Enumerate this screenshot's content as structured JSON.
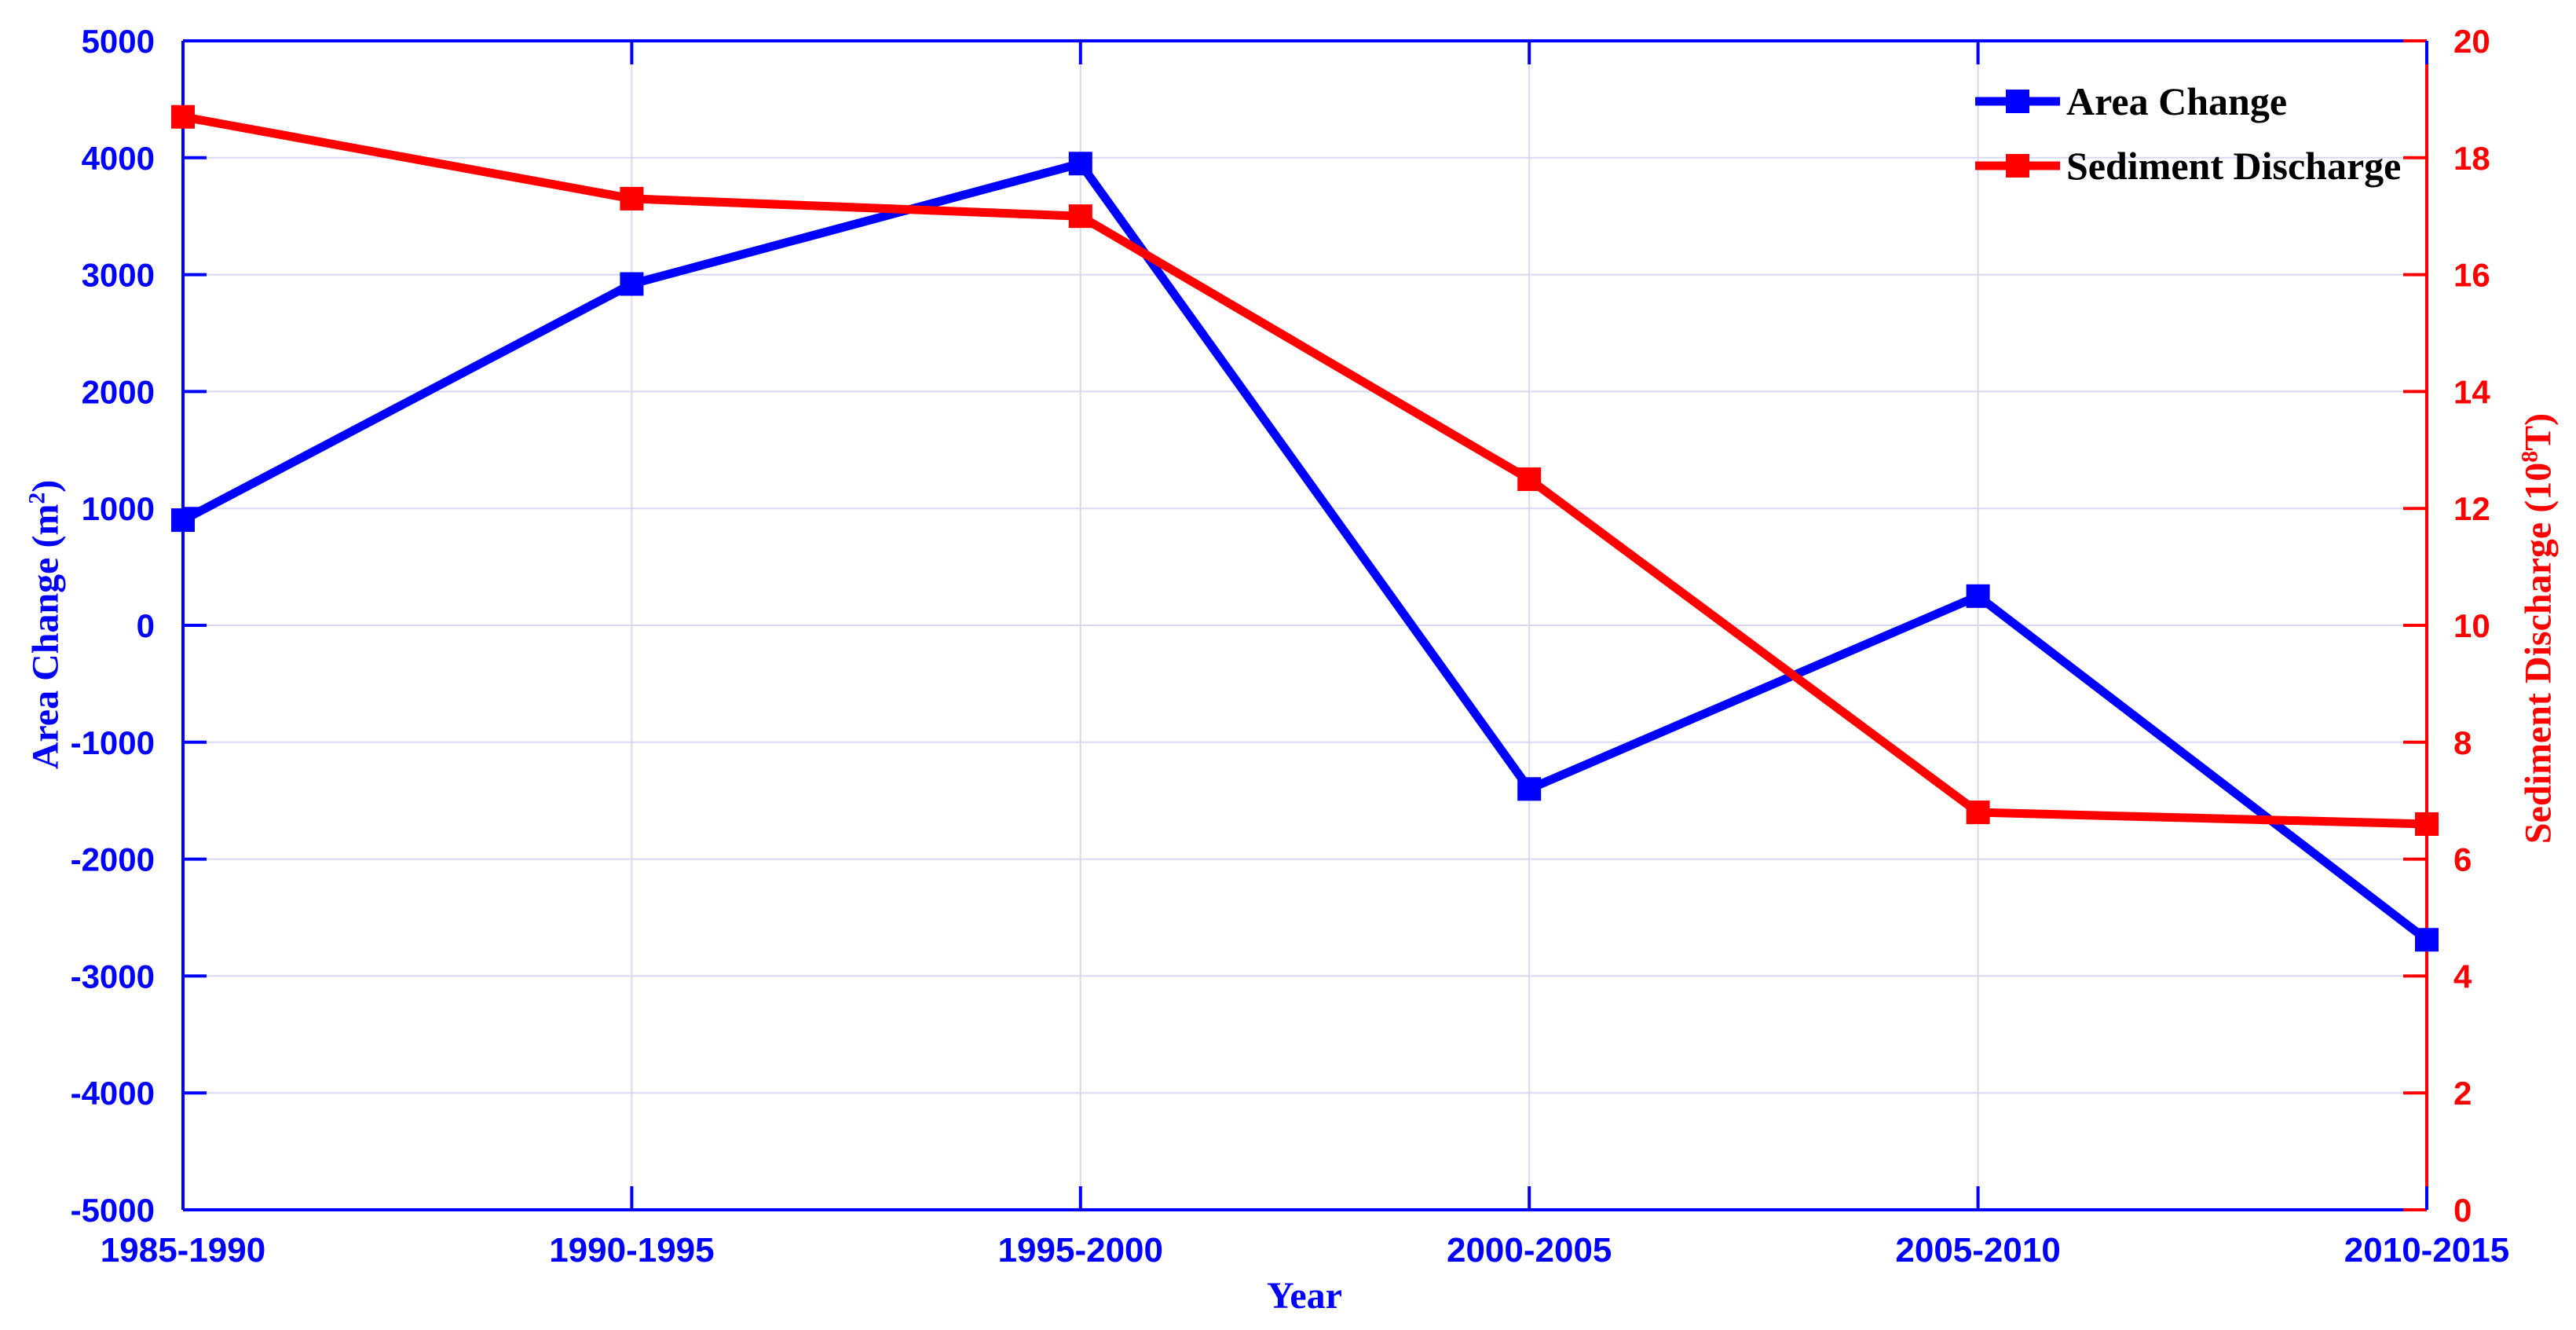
{
  "figure": {
    "background": "#ffffff"
  },
  "chart_data": {
    "type": "line",
    "title": "",
    "categories": [
      "1985-1990",
      "1990-1995",
      "1995-2000",
      "2000-2005",
      "2005-2010",
      "2010-2015"
    ],
    "xlabel": "Year",
    "series": [
      {
        "name": "Area Change",
        "axis": "left",
        "color": "#0000ff",
        "marker": "square",
        "values": [
          900,
          2920,
          3950,
          -1400,
          250,
          -2690
        ]
      },
      {
        "name": "Sediment Discharge",
        "axis": "right",
        "color": "#ff0000",
        "marker": "square",
        "values": [
          18.7,
          17.3,
          17.0,
          12.5,
          6.8,
          6.6
        ]
      }
    ],
    "left_axis": {
      "label_pre": "Area Change (m",
      "label_sup": "2",
      "label_post": ")",
      "min": -5000,
      "max": 5000,
      "step": 1000,
      "color": "#0000ff",
      "tick_labels": [
        "5000",
        "4000",
        "3000",
        "2000",
        "1000",
        "0",
        "-1000",
        "-2000",
        "-3000",
        "-4000",
        "-5000"
      ]
    },
    "right_axis": {
      "label_pre": "Sediment Discharge (10",
      "label_sup": "8",
      "label_post": "T)",
      "min": 0,
      "max": 20,
      "step": 2,
      "color": "#ff0000",
      "tick_labels": [
        "20",
        "18",
        "16",
        "14",
        "12",
        "10",
        "8",
        "6",
        "4",
        "2",
        "0"
      ]
    },
    "x_axis": {
      "label": "Year",
      "color": "#0000ff"
    },
    "grid": {
      "on": true,
      "color": "#d8d8f2"
    },
    "legend": {
      "position": "top-right",
      "entries": [
        "Area Change",
        "Sediment Discharge"
      ]
    }
  }
}
